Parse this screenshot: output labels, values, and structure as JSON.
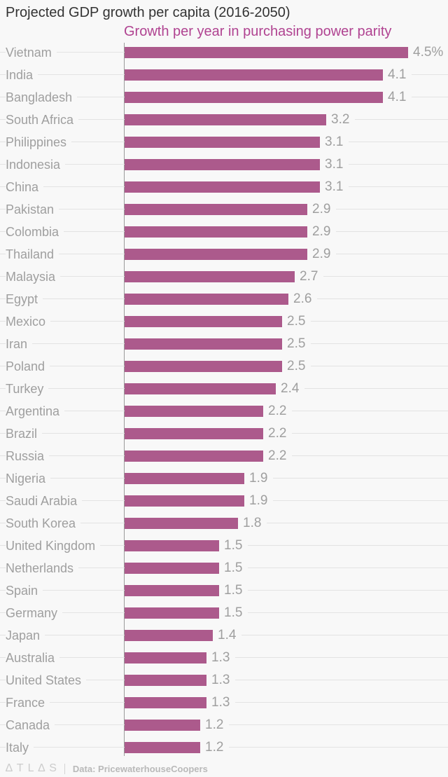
{
  "title": "Projected GDP growth per capita (2016-2050)",
  "subtitle": "Growth per year in purchasing power parity",
  "footer": {
    "logo": "∆TL∆S",
    "credit": "Data: PricewaterhouseCoopers"
  },
  "colors": {
    "background": "#f8f8f8",
    "bar": "#ac5a8c",
    "accent": "#b04391",
    "label_gray": "#9f9f9f",
    "gridline": "#e3e3e3",
    "axis": "#9a9a9a",
    "title": "#333333",
    "footer_logo": "#cccccc",
    "footer_text": "#b9b9b9"
  },
  "chart_data": {
    "type": "bar",
    "orientation": "horizontal",
    "title": "Projected GDP growth per capita (2016-2050)",
    "subtitle": "Growth per year in purchasing power parity",
    "unit": "% growth per year in purchasing power parity",
    "xlim": [
      0,
      4.6
    ],
    "grid": false,
    "legend": false,
    "categories": [
      "Vietnam",
      "India",
      "Bangladesh",
      "South Africa",
      "Philippines",
      "Indonesia",
      "China",
      "Pakistan",
      "Colombia",
      "Thailand",
      "Malaysia",
      "Egypt",
      "Mexico",
      "Iran",
      "Poland",
      "Turkey",
      "Argentina",
      "Brazil",
      "Russia",
      "Nigeria",
      "Saudi Arabia",
      "South Korea",
      "United Kingdom",
      "Netherlands",
      "Spain",
      "Germany",
      "Japan",
      "Australia",
      "United States",
      "France",
      "Canada",
      "Italy"
    ],
    "values": [
      4.5,
      4.1,
      4.1,
      3.2,
      3.1,
      3.1,
      3.1,
      2.9,
      2.9,
      2.9,
      2.7,
      2.6,
      2.5,
      2.5,
      2.5,
      2.4,
      2.2,
      2.2,
      2.2,
      1.9,
      1.9,
      1.8,
      1.5,
      1.5,
      1.5,
      1.5,
      1.4,
      1.3,
      1.3,
      1.3,
      1.2,
      1.2
    ],
    "value_labels": [
      "4.5%",
      "4.1",
      "4.1",
      "3.2",
      "3.1",
      "3.1",
      "3.1",
      "2.9",
      "2.9",
      "2.9",
      "2.7",
      "2.6",
      "2.5",
      "2.5",
      "2.5",
      "2.4",
      "2.2",
      "2.2",
      "2.2",
      "1.9",
      "1.9",
      "1.8",
      "1.5",
      "1.5",
      "1.5",
      "1.5",
      "1.4",
      "1.3",
      "1.3",
      "1.3",
      "1.2",
      "1.2"
    ],
    "source": "Data: PricewaterhouseCoopers"
  }
}
